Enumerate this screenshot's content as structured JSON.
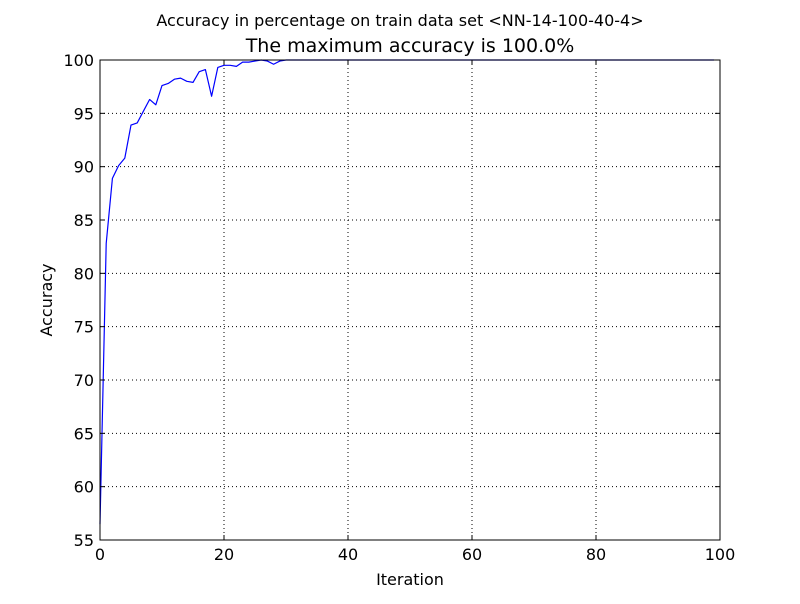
{
  "chart_data": {
    "type": "line",
    "suptitle": "Accuracy in percentage on train data set <NN-14-100-40-4>",
    "title": "The maximum accuracy is 100.0%",
    "xlabel": "Iteration",
    "ylabel": "Accuracy",
    "xlim": [
      0,
      100
    ],
    "ylim": [
      55,
      100
    ],
    "xticks": [
      0,
      20,
      40,
      60,
      80,
      100
    ],
    "yticks": [
      55,
      60,
      65,
      70,
      75,
      80,
      85,
      90,
      95,
      100
    ],
    "grid": true,
    "series": [
      {
        "color": "#0000ff",
        "x": [
          0,
          1,
          2,
          3,
          4,
          5,
          6,
          7,
          8,
          9,
          10,
          11,
          12,
          13,
          14,
          15,
          16,
          17,
          18,
          19,
          20,
          21,
          22,
          23,
          24,
          25,
          26,
          27,
          28,
          29,
          30,
          31,
          32,
          33,
          34,
          35,
          36,
          37,
          38,
          39,
          40,
          41,
          42,
          43,
          44,
          45,
          46,
          47,
          48,
          49,
          50,
          51,
          52,
          53,
          54,
          55,
          56,
          57,
          58,
          59,
          60,
          61,
          62,
          63,
          64,
          65,
          66,
          67,
          68,
          69,
          70,
          71,
          72,
          73,
          74,
          75,
          76,
          77,
          78,
          79,
          80,
          81,
          82,
          83,
          84,
          85,
          86,
          87,
          88,
          89,
          90,
          91,
          92,
          93,
          94,
          95,
          96,
          97,
          98,
          99
        ],
        "values": [
          56.5,
          82.8,
          88.9,
          90.1,
          90.8,
          93.9,
          94.1,
          95.2,
          96.3,
          95.8,
          97.6,
          97.8,
          98.2,
          98.3,
          98.0,
          97.9,
          98.9,
          99.1,
          96.6,
          99.3,
          99.5,
          99.5,
          99.4,
          99.8,
          99.8,
          99.9,
          100.0,
          99.9,
          99.6,
          99.9,
          100.0,
          100.0,
          100.0,
          100.0,
          100.0,
          100.0,
          100.0,
          100.0,
          100.0,
          100.0,
          100.0,
          100.0,
          100.0,
          100.0,
          100.0,
          100.0,
          100.0,
          100.0,
          100.0,
          100.0,
          100.0,
          100.0,
          100.0,
          100.0,
          100.0,
          100.0,
          100.0,
          100.0,
          100.0,
          100.0,
          100.0,
          100.0,
          100.0,
          100.0,
          100.0,
          100.0,
          100.0,
          100.0,
          100.0,
          100.0,
          100.0,
          100.0,
          100.0,
          100.0,
          100.0,
          100.0,
          100.0,
          100.0,
          100.0,
          100.0,
          100.0,
          100.0,
          100.0,
          100.0,
          100.0,
          100.0,
          100.0,
          100.0,
          100.0,
          100.0,
          100.0,
          100.0,
          100.0,
          100.0,
          100.0,
          100.0,
          100.0,
          100.0,
          100.0,
          100.0
        ]
      }
    ]
  }
}
